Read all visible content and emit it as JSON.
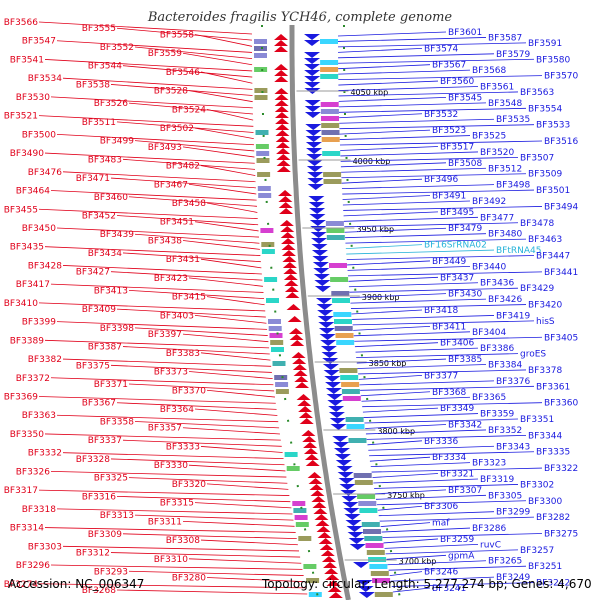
{
  "header": {
    "title": "Bacteroides fragilis YCH46, complete genome"
  },
  "footer": {
    "accession": "Accession: NC_006347",
    "summary": "Topology: circular; Length: 5,277,274 bp; Genes: 4,670"
  },
  "colors": {
    "left_strand": "#e0001a",
    "right_strand": "#1a1adf",
    "rna": "#27b3d9",
    "backbone": "#8c8c8c",
    "tick": "#2a8a2a"
  },
  "scale_ticks": [
    "4050 kbp",
    "4000 kbp",
    "3950 kbp",
    "3900 kbp",
    "3850 kbp",
    "3800 kbp",
    "3750 kbp",
    "3700 kbp"
  ],
  "left_labels": [
    "BF3566",
    "BF3555",
    "BF3558",
    "BF3547",
    "BF3552",
    "BF3559",
    "BF3541",
    "BF3544",
    "BF3546",
    "BF3534",
    "BF3538",
    "BF3528",
    "BF3530",
    "BF3526",
    "BF3524",
    "BF3521",
    "BF3511",
    "BF3502",
    "BF3500",
    "BF3499",
    "BF3493",
    "BF3490",
    "BF3483",
    "BF3482",
    "BF3476",
    "BF3471",
    "BF3467",
    "BF3464",
    "BF3460",
    "BF3458",
    "BF3455",
    "BF3452",
    "BF3451",
    "BF3450",
    "BF3439",
    "BF3438",
    "BF3435",
    "BF3434",
    "BF3431",
    "BF3428",
    "BF3427",
    "BF3423",
    "BF3417",
    "BF3413",
    "BF3415",
    "BF3410",
    "BF3409",
    "BF3403",
    "BF3399",
    "BF3398",
    "BF3397",
    "BF3389",
    "BF3387",
    "BF3383",
    "BF3382",
    "BF3375",
    "BF3373",
    "BF3372",
    "BF3371",
    "BF3370",
    "BF3369",
    "BF3367",
    "BF3364",
    "BF3363",
    "BF3358",
    "BF3357",
    "BF3350",
    "BF3337",
    "BF3333",
    "BF3332",
    "BF3328",
    "BF3330",
    "BF3326",
    "BF3325",
    "BF3320",
    "BF3317",
    "BF3316",
    "BF3315",
    "BF3318",
    "BF3313",
    "BF3311",
    "BF3314",
    "BF3309",
    "BF3308",
    "BF3303",
    "BF3312",
    "BF3310",
    "BF3296",
    "BF3293",
    "BF3280",
    "BF3274",
    "BF3268"
  ],
  "right_labels": [
    "BF3601",
    "BF3587",
    "BF3591",
    "BF3574",
    "BF3579",
    "BF3580",
    "BF3567",
    "BF3568",
    "BF3570",
    "BF3560",
    "BF3561",
    "BF3563",
    "BF3545",
    "BF3548",
    "BF3554",
    "BF3532",
    "BF3535",
    "BF3533",
    "BF3523",
    "BF3525",
    "BF3516",
    "BF3517",
    "BF3520",
    "BF3507",
    "BF3508",
    "BF3512",
    "BF3509",
    "BF3496",
    "BF3498",
    "BF3501",
    "BF3491",
    "BF3492",
    "BF3494",
    "BF3495",
    "BF3477",
    "BF3478",
    "BF3479",
    "BF3480",
    "BF3463",
    "BF16SrRNA02",
    "BFtRNA45",
    "BF3447",
    "BF3449",
    "BF3440",
    "BF3441",
    "BF3437",
    "BF3436",
    "BF3429",
    "BF3430",
    "BF3426",
    "BF3420",
    "BF3418",
    "BF3419",
    "hisS",
    "BF3411",
    "BF3404",
    "BF3405",
    "BF3406",
    "BF3386",
    "groES",
    "BF3385",
    "BF3384",
    "BF3378",
    "BF3377",
    "BF3376",
    "BF3361",
    "BF3368",
    "BF3365",
    "BF3360",
    "BF3349",
    "BF3359",
    "BF3351",
    "BF3342",
    "BF3352",
    "BF3344",
    "BF3336",
    "BF3343",
    "BF3335",
    "BF3334",
    "BF3323",
    "BF3322",
    "BF3321",
    "BF3319",
    "BF3302",
    "BF3307",
    "BF3305",
    "BF3300",
    "BF3306",
    "BF3299",
    "BF3282",
    "maf",
    "BF3286",
    "BF3275",
    "BF3259",
    "ruvC",
    "BF3257",
    "gpmA",
    "BF3265",
    "BF3251",
    "BF3246",
    "BF3249",
    "BF3242",
    "BF3241"
  ]
}
